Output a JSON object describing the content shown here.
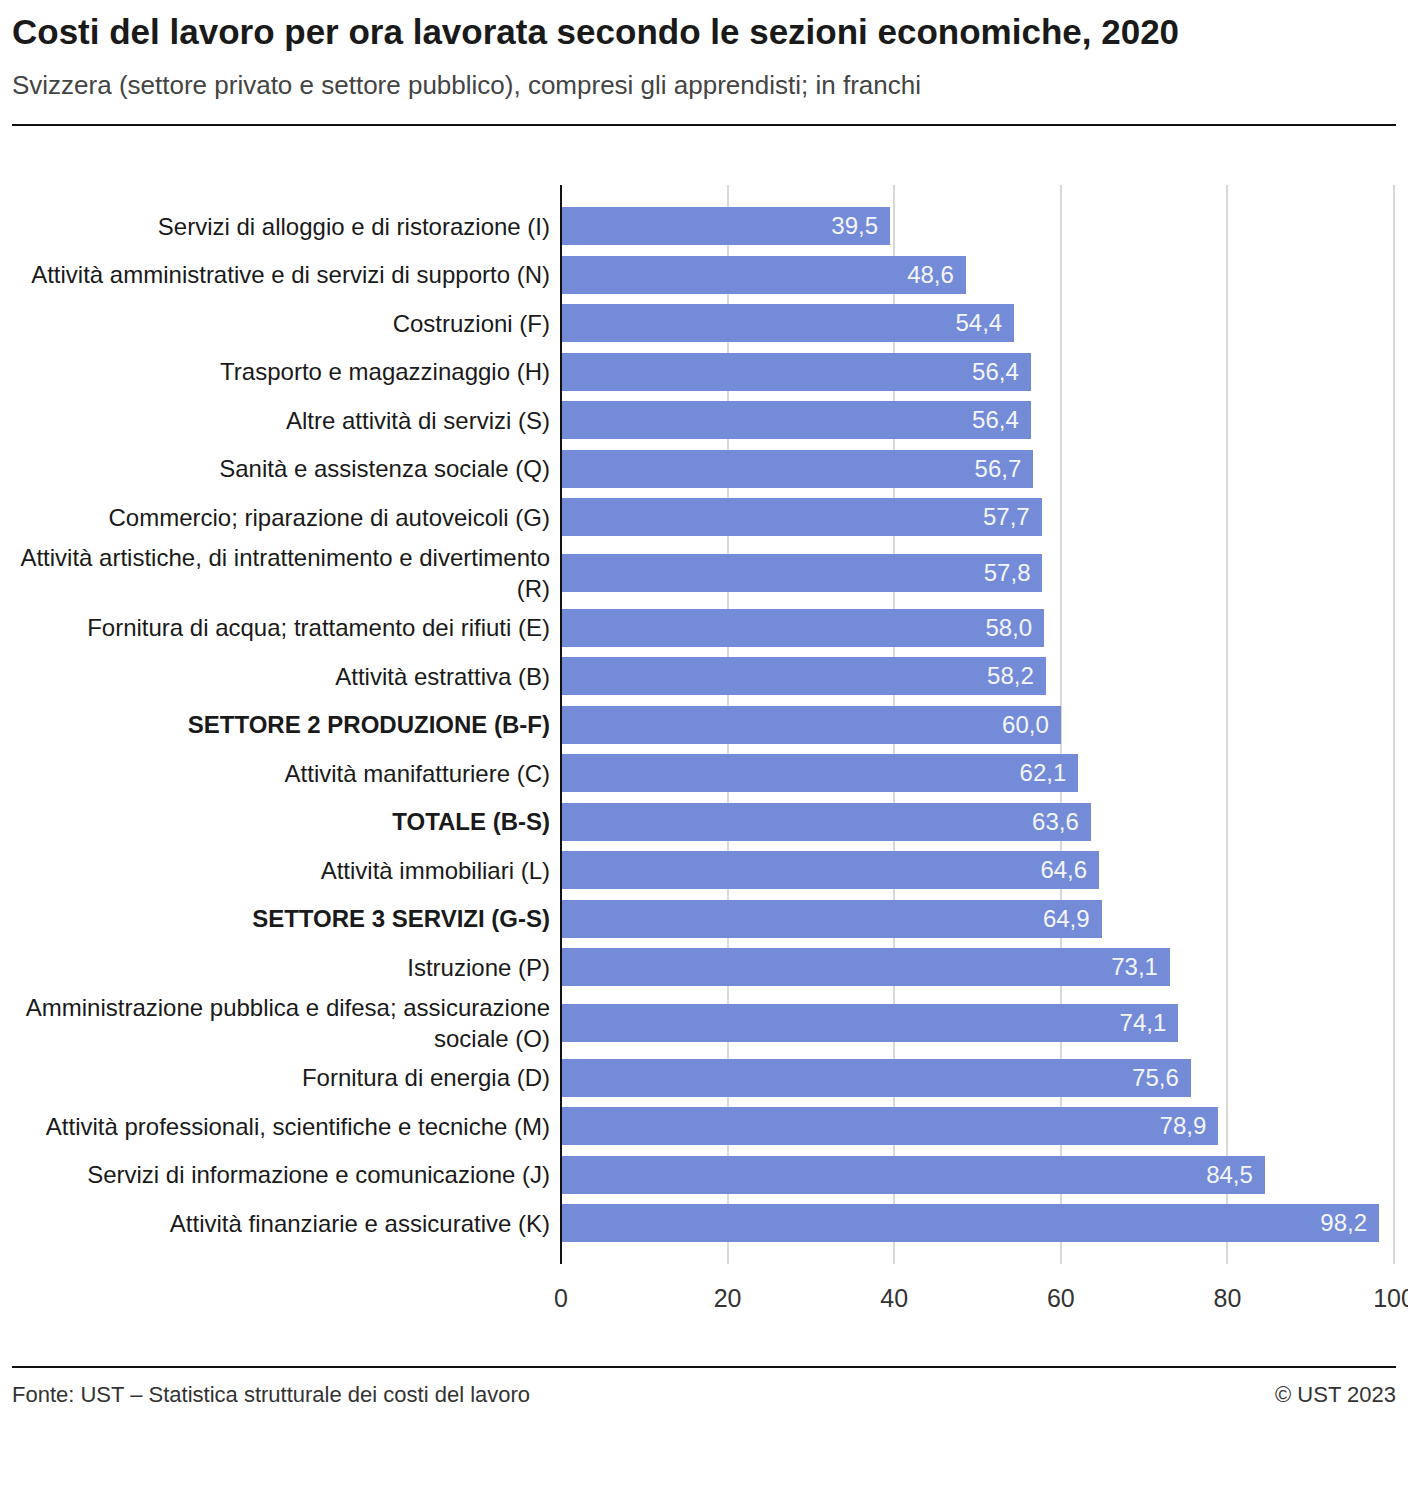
{
  "chart_data": {
    "type": "bar",
    "orientation": "horizontal",
    "title": "Costi del lavoro per ora lavorata secondo le sezioni economiche, 2020",
    "subtitle": "Svizzera (settore privato e settore pubblico), compresi gli apprendisti; in franchi",
    "source": "Fonte: UST – Statistica strutturale dei costi del lavoro",
    "credit": "© UST 2023",
    "categories": [
      "Servizi di alloggio e di ristorazione (I)",
      "Attività amministrative e di servizi di supporto (N)",
      "Costruzioni (F)",
      "Trasporto e magazzinaggio (H)",
      "Altre attività di servizi (S)",
      "Sanità e assistenza sociale (Q)",
      "Commercio; riparazione di autoveicoli (G)",
      "Attività artistiche, di intrattenimento e divertimento (R)",
      "Fornitura di acqua; trattamento dei rifiuti (E)",
      "Attività estrattiva (B)",
      "SETTORE 2 PRODUZIONE (B-F)",
      "Attività manifatturiere (C)",
      "TOTALE (B-S)",
      "Attività immobiliari (L)",
      "SETTORE 3 SERVIZI (G-S)",
      "Istruzione (P)",
      "Amministrazione pubblica e difesa; assicurazione sociale (O)",
      "Fornitura di energia (D)",
      "Attività professionali, scientifiche e tecniche (M)",
      "Servizi di informazione e comunicazione (J)",
      "Attività finanziarie e assicurative (K)"
    ],
    "values": [
      39.5,
      48.6,
      54.4,
      56.4,
      56.4,
      56.7,
      57.7,
      57.8,
      58.0,
      58.2,
      60.0,
      62.1,
      63.6,
      64.6,
      64.9,
      73.1,
      74.1,
      75.6,
      78.9,
      84.5,
      98.2
    ],
    "value_labels": [
      "39,5",
      "48,6",
      "54,4",
      "56,4",
      "56,4",
      "56,7",
      "57,7",
      "57,8",
      "58,0",
      "58,2",
      "60,0",
      "62,1",
      "63,6",
      "64,6",
      "64,9",
      "73,1",
      "74,1",
      "75,6",
      "78,9",
      "84,5",
      "98,2"
    ],
    "color": "#748bd8",
    "data_labels": true,
    "grid": true,
    "xlim": [
      0,
      100
    ],
    "xticks": [
      0,
      20,
      40,
      60,
      80,
      100
    ]
  }
}
